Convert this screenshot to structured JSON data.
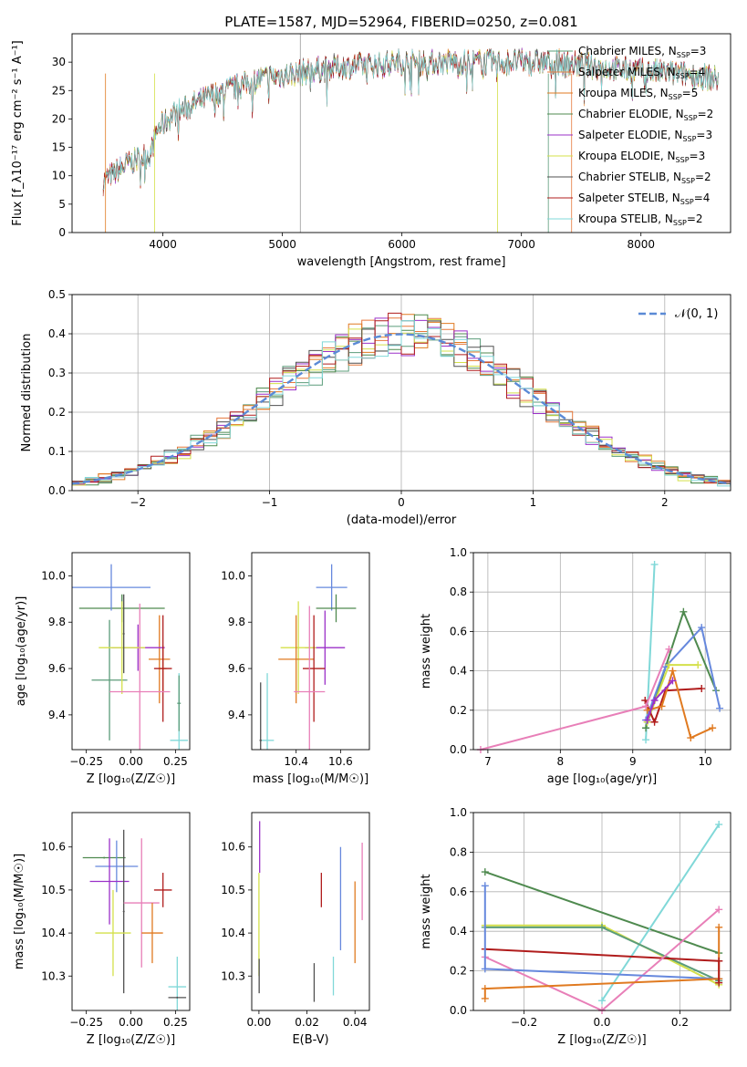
{
  "title": "PLATE=1587, MJD=52964, FIBERID=0250, z=0.081",
  "colors": {
    "Chabrier MILES": "#5b9c7a",
    "Salpeter MILES": "#e6783c",
    "Kroupa MILES": "#e07a20",
    "Chabrier ELODIE": "#4f8a4f",
    "Salpeter ELODIE": "#9b30c8",
    "Kroupa ELODIE": "#d4e04a",
    "Chabrier STELIB": "#505050",
    "Salpeter STELIB": "#b01c1c",
    "Kroupa STELIB": "#80d8d8",
    "blue": "#6688dd",
    "pink": "#e87fb8"
  },
  "chart_data": [
    {
      "type": "line",
      "id": "spectrum",
      "title": "PLATE=1587, MJD=52964, FIBERID=0250, z=0.081",
      "xlabel": "wavelength [Angstrom, rest frame]",
      "ylabel": "Flux [f_λ10⁻¹⁷ erg cm⁻² s⁻¹ A⁻¹]",
      "xlim": [
        3240,
        8750
      ],
      "ylim": [
        0,
        35
      ],
      "xticks": [
        "4000",
        "5000",
        "6000",
        "7000",
        "8000"
      ],
      "yticks": [
        "0",
        "5",
        "10",
        "15",
        "20",
        "25",
        "30"
      ],
      "legend": [
        {
          "name": "Chabrier MILES",
          "nssp": "3"
        },
        {
          "name": "Salpeter MILES",
          "nssp": "4"
        },
        {
          "name": "Kroupa MILES",
          "nssp": "5"
        },
        {
          "name": "Chabrier ELODIE",
          "nssp": "2"
        },
        {
          "name": "Salpeter ELODIE",
          "nssp": "3"
        },
        {
          "name": "Kroupa ELODIE",
          "nssp": "3"
        },
        {
          "name": "Chabrier STELIB",
          "nssp": "2"
        },
        {
          "name": "Salpeter STELIB",
          "nssp": "4"
        },
        {
          "name": "Kroupa STELIB",
          "nssp": "2"
        }
      ],
      "legend_placement": "upper right",
      "continuum": [
        [
          3500,
          9
        ],
        [
          3700,
          12
        ],
        [
          3900,
          14
        ],
        [
          3950,
          18
        ],
        [
          4100,
          21
        ],
        [
          4400,
          24
        ],
        [
          4800,
          27
        ],
        [
          5100,
          28
        ],
        [
          5400,
          29
        ],
        [
          5700,
          29.5
        ],
        [
          6000,
          30
        ],
        [
          6300,
          30
        ],
        [
          6600,
          30
        ],
        [
          7000,
          30
        ],
        [
          7300,
          30
        ],
        [
          7500,
          29.5
        ],
        [
          7700,
          29
        ],
        [
          8000,
          28.5
        ],
        [
          8300,
          28
        ],
        [
          8500,
          27.5
        ],
        [
          8650,
          27
        ]
      ]
    },
    {
      "type": "line",
      "id": "residuals",
      "xlabel": "(data-model)/error",
      "ylabel": "Normed distribution",
      "xlim": [
        -2.5,
        2.5
      ],
      "ylim": [
        0,
        0.5
      ],
      "xticks": [
        "−2",
        "−1",
        "0",
        "1",
        "2"
      ],
      "yticks": [
        "0.0",
        "0.1",
        "0.2",
        "0.3",
        "0.4",
        "0.5"
      ],
      "legend": "𝒩(0, 1)",
      "legend_placement": "upper right",
      "grid": true
    },
    {
      "type": "scatter",
      "id": "age-vs-Z",
      "xlabel": "Z [log₁₀(Z/Z☉)]",
      "ylabel": "age  [log₁₀(age/yr)]",
      "xlim": [
        -0.33,
        0.33
      ],
      "ylim": [
        9.25,
        10.1
      ],
      "xticks": [
        "−0.25",
        "0.00",
        "0.25"
      ],
      "yticks": [
        "9.4",
        "9.6",
        "9.8",
        "10.0"
      ],
      "points": [
        {
          "series": "Chabrier MILES",
          "x": -0.12,
          "y": 9.55,
          "xerr": 0.1,
          "yerr": 0.26
        },
        {
          "series": "Kroupa MILES",
          "x": 0.16,
          "y": 9.64,
          "xerr": 0.06,
          "yerr": 0.19
        },
        {
          "series": "Kroupa MILES 2",
          "x": 0.18,
          "y": 9.6,
          "xerr": 0.02,
          "yerr": 0.1
        },
        {
          "series": "Chabrier ELODIE",
          "x": -0.05,
          "y": 9.86,
          "xerr": 0.24,
          "yerr": 0.06
        },
        {
          "series": "Salpeter ELODIE",
          "x": 0.04,
          "y": 9.69,
          "xerr": 0.15,
          "yerr": 0.1
        },
        {
          "series": "Kroupa ELODIE",
          "x": -0.05,
          "y": 9.69,
          "xerr": 0.13,
          "yerr": 0.2
        },
        {
          "series": "Chabrier STELIB",
          "x": -0.04,
          "y": 9.75,
          "xerr": 0.005,
          "yerr": 0.17
        },
        {
          "series": "Salpeter STELIB",
          "x": 0.18,
          "y": 9.6,
          "xerr": 0.05,
          "yerr": 0.23
        },
        {
          "series": "Kroupa STELIB",
          "x": 0.27,
          "y": 9.29,
          "xerr": 0.05,
          "yerr": 0.29
        },
        {
          "series": "pink",
          "x": 0.05,
          "y": 9.5,
          "xerr": 0.17,
          "yerr": 0.38
        },
        {
          "series": "blue",
          "x": -0.11,
          "y": 9.95,
          "xerr": 0.22,
          "yerr": 0.1
        },
        {
          "series": "Chabrier MILES",
          "x": 0.27,
          "y": 9.45,
          "xerr": 0.01,
          "yerr": 0.12
        }
      ]
    },
    {
      "type": "scatter",
      "id": "age-vs-mass",
      "xlabel": "mass [log₁₀(M/M☉)]",
      "ylabel": "",
      "xlim": [
        10.2,
        10.73
      ],
      "ylim": [
        9.25,
        10.1
      ],
      "xticks": [
        "10.4",
        "10.6"
      ],
      "yticks": [
        "9.4",
        "9.6",
        "9.8",
        "10.0"
      ],
      "points": [
        {
          "series": "blue",
          "x": 10.56,
          "y": 9.95,
          "xerr": 0.07,
          "yerr": 0.1
        },
        {
          "series": "Chabrier ELODIE",
          "x": 10.58,
          "y": 9.86,
          "xerr": 0.09,
          "yerr": 0.06
        },
        {
          "series": "Salpeter ELODIE",
          "x": 10.53,
          "y": 9.69,
          "xerr": 0.09,
          "yerr": 0.16
        },
        {
          "series": "Kroupa ELODIE",
          "x": 10.41,
          "y": 9.69,
          "xerr": 0.08,
          "yerr": 0.2
        },
        {
          "series": "Kroupa MILES",
          "x": 10.4,
          "y": 9.64,
          "xerr": 0.08,
          "yerr": 0.19
        },
        {
          "series": "Salpeter STELIB",
          "x": 10.48,
          "y": 9.6,
          "xerr": 0.05,
          "yerr": 0.23
        },
        {
          "series": "pink",
          "x": 10.46,
          "y": 9.5,
          "xerr": 0.07,
          "yerr": 0.37
        },
        {
          "series": "Kroupa STELIB",
          "x": 10.27,
          "y": 9.29,
          "xerr": 0.03,
          "yerr": 0.29
        },
        {
          "series": "Chabrier STELIB",
          "x": 10.24,
          "y": 9.29,
          "xerr": 0.005,
          "yerr": 0.25
        }
      ]
    },
    {
      "type": "line",
      "id": "massweight-vs-age",
      "xlabel": "age  [log₁₀(age/yr)]",
      "ylabel": "mass weight",
      "xlim": [
        6.8,
        10.35
      ],
      "ylim": [
        0,
        1
      ],
      "xticks": [
        "7",
        "8",
        "9",
        "10"
      ],
      "yticks": [
        "0.0",
        "0.2",
        "0.4",
        "0.6",
        "0.8",
        "1.0"
      ],
      "grid": true,
      "series": [
        {
          "name": "Kroupa STELIB",
          "points": [
            [
              9.18,
              0.05
            ],
            [
              9.3,
              0.94
            ]
          ]
        },
        {
          "name": "Chabrier ELODIE",
          "points": [
            [
              9.18,
              0.11
            ],
            [
              9.7,
              0.7
            ],
            [
              10.15,
              0.3
            ]
          ]
        },
        {
          "name": "blue",
          "points": [
            [
              9.18,
              0.15
            ],
            [
              9.45,
              0.42
            ],
            [
              9.95,
              0.62
            ],
            [
              10.2,
              0.21
            ]
          ]
        },
        {
          "name": "Kroupa ELODIE",
          "points": [
            [
              9.2,
              0.14
            ],
            [
              9.5,
              0.43
            ],
            [
              9.9,
              0.43
            ]
          ]
        },
        {
          "name": "Salpeter STELIB",
          "points": [
            [
              9.17,
              0.25
            ],
            [
              9.3,
              0.14
            ],
            [
              9.45,
              0.3
            ],
            [
              9.95,
              0.31
            ]
          ]
        },
        {
          "name": "Kroupa MILES",
          "points": [
            [
              9.2,
              0.2
            ],
            [
              9.4,
              0.22
            ],
            [
              9.55,
              0.4
            ],
            [
              9.8,
              0.06
            ],
            [
              10.1,
              0.11
            ]
          ]
        },
        {
          "name": "pink",
          "points": [
            [
              6.9,
              0.0
            ],
            [
              9.18,
              0.22
            ],
            [
              9.5,
              0.51
            ]
          ]
        },
        {
          "name": "Salpeter ELODIE",
          "points": [
            [
              9.2,
              0.15
            ],
            [
              9.3,
              0.25
            ],
            [
              9.55,
              0.35
            ]
          ]
        }
      ]
    },
    {
      "type": "scatter",
      "id": "mass-vs-Z",
      "xlabel": "Z [log₁₀(Z/Z☉)]",
      "ylabel": "mass [log₁₀(M/M☉)]",
      "xlim": [
        -0.33,
        0.33
      ],
      "ylim": [
        10.22,
        10.68
      ],
      "xticks": [
        "−0.25",
        "0.00",
        "0.25"
      ],
      "yticks": [
        "10.3",
        "10.4",
        "10.5",
        "10.6"
      ],
      "points": [
        {
          "series": "Chabrier ELODIE",
          "x": -0.15,
          "y": 10.575,
          "xerr": 0.12,
          "yerr": 0.002
        },
        {
          "series": "blue",
          "x": -0.08,
          "y": 10.555,
          "xerr": 0.12,
          "yerr": 0.06
        },
        {
          "series": "Salpeter ELODIE",
          "x": -0.12,
          "y": 10.52,
          "xerr": 0.11,
          "yerr": 0.1
        },
        {
          "series": "Chabrier STELIB",
          "x": -0.04,
          "y": 10.45,
          "xerr": 0.005,
          "yerr": 0.19
        },
        {
          "series": "pink",
          "x": 0.06,
          "y": 10.47,
          "xerr": 0.1,
          "yerr": 0.15
        },
        {
          "series": "Salpeter STELIB",
          "x": 0.18,
          "y": 10.5,
          "xerr": 0.05,
          "yerr": 0.04
        },
        {
          "series": "Kroupa ELODIE",
          "x": -0.1,
          "y": 10.4,
          "xerr": 0.1,
          "yerr": 0.1
        },
        {
          "series": "Kroupa MILES",
          "x": 0.12,
          "y": 10.4,
          "xerr": 0.06,
          "yerr": 0.07
        },
        {
          "series": "Kroupa STELIB",
          "x": 0.26,
          "y": 10.275,
          "xerr": 0.05,
          "yerr": 0.07
        },
        {
          "series": "Chabrier STELIB",
          "x": 0.26,
          "y": 10.25,
          "xerr": 0.05,
          "yerr": 0.002
        }
      ]
    },
    {
      "type": "scatter",
      "id": "mass-vs-ebv",
      "xlabel": "E(B-V)",
      "ylabel": "",
      "xlim": [
        -0.003,
        0.046
      ],
      "ylim": [
        10.22,
        10.68
      ],
      "xticks": [
        "0.00",
        "0.02",
        "0.04"
      ],
      "yticks": [
        "10.3",
        "10.4",
        "10.5",
        "10.6"
      ],
      "points": [
        {
          "series": "Salpeter ELODIE",
          "x": 0.0003,
          "y": 10.6,
          "xerr": 0,
          "yerr": 0.06
        },
        {
          "series": "Kroupa ELODIE",
          "x": 0.0,
          "y": 10.42,
          "xerr": 0,
          "yerr": 0.12
        },
        {
          "series": "Chabrier STELIB",
          "x": 0.0001,
          "y": 10.3,
          "xerr": 0,
          "yerr": 0.04
        },
        {
          "series": "Salpeter STELIB",
          "x": 0.026,
          "y": 10.5,
          "xerr": 0,
          "yerr": 0.04
        },
        {
          "series": "Chabrier STELIB",
          "x": 0.023,
          "y": 10.285,
          "xerr": 0,
          "yerr": 0.045
        },
        {
          "series": "Kroupa STELIB",
          "x": 0.031,
          "y": 10.3,
          "xerr": 0,
          "yerr": 0.045
        },
        {
          "series": "blue",
          "x": 0.034,
          "y": 10.48,
          "xerr": 0,
          "yerr": 0.12
        },
        {
          "series": "Kroupa MILES",
          "x": 0.04,
          "y": 10.425,
          "xerr": 0,
          "yerr": 0.095
        },
        {
          "series": "pink",
          "x": 0.043,
          "y": 10.52,
          "xerr": 0,
          "yerr": 0.09
        }
      ]
    },
    {
      "type": "line",
      "id": "massweight-vs-Z",
      "xlabel": "Z [log₁₀(Z/Z☉)]",
      "ylabel": "mass weight",
      "xlim": [
        -0.33,
        0.33
      ],
      "ylim": [
        0,
        1
      ],
      "xticks": [
        "−0.2",
        "0.0",
        "0.2"
      ],
      "yticks": [
        "0.0",
        "0.2",
        "0.4",
        "0.6",
        "0.8",
        "1.0"
      ],
      "grid": true,
      "series": [
        {
          "name": "Chabrier ELODIE",
          "points": [
            [
              -0.3,
              0.7
            ],
            [
              0.3,
              0.29
            ]
          ]
        },
        {
          "name": "Kroupa STELIB",
          "points": [
            [
              0.0,
              0.05
            ],
            [
              0.3,
              0.94
            ]
          ]
        },
        {
          "name": "Kroupa ELODIE",
          "points": [
            [
              -0.3,
              0.43
            ],
            [
              0.0,
              0.43
            ],
            [
              0.3,
              0.13
            ]
          ]
        },
        {
          "name": "Chabrier MILES",
          "points": [
            [
              -0.3,
              0.42
            ],
            [
              0.0,
              0.42
            ],
            [
              0.3,
              0.15
            ]
          ]
        },
        {
          "name": "Salpeter STELIB",
          "points": [
            [
              -0.3,
              0.31
            ],
            [
              0.3,
              0.25
            ]
          ]
        },
        {
          "name": "pink",
          "points": [
            [
              -0.3,
              0.27
            ],
            [
              0.0,
              0.0
            ],
            [
              0.3,
              0.51
            ]
          ]
        },
        {
          "name": "blue",
          "points": [
            [
              -0.3,
              0.63
            ],
            [
              -0.3,
              0.21
            ],
            [
              0.3,
              0.16
            ]
          ]
        },
        {
          "name": "Kroupa MILES",
          "points": [
            [
              -0.3,
              0.06
            ],
            [
              -0.3,
              0.11
            ],
            [
              0.3,
              0.16
            ],
            [
              0.3,
              0.42
            ]
          ]
        },
        {
          "name": "Salpeter STELIB",
          "points": [
            [
              0.3,
              0.14
            ],
            [
              0.3,
              0.25
            ]
          ]
        }
      ]
    }
  ]
}
